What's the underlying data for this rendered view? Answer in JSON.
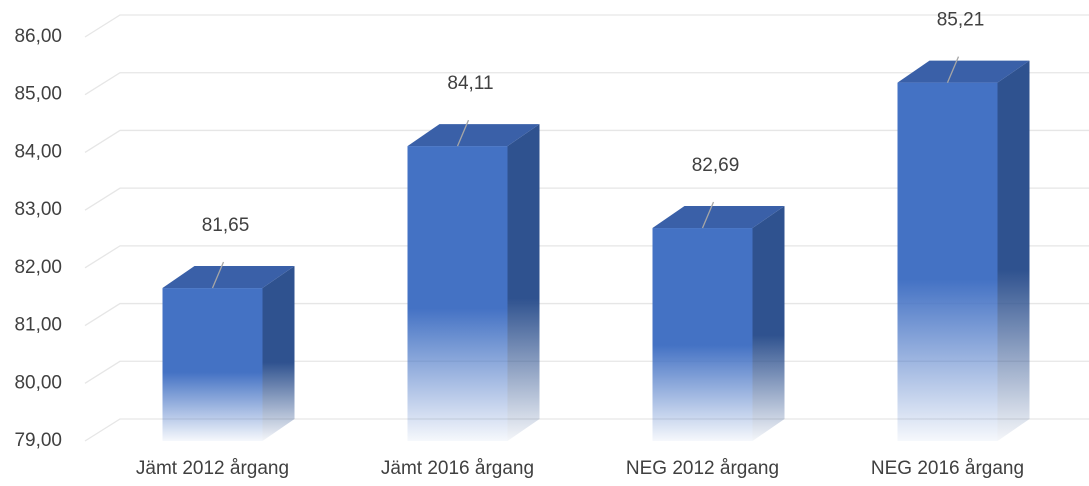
{
  "chart_data": {
    "type": "bar",
    "bar_style": "3d",
    "categories": [
      "Jämt 2012 årgang",
      "Jämt 2016 årgang",
      "NEG 2012 årgang",
      "NEG 2016 årgang"
    ],
    "values": [
      81.65,
      84.11,
      82.69,
      85.21
    ],
    "value_labels": [
      "81,65",
      "84,11",
      "82,69",
      "85,21"
    ],
    "color": "#4472c4",
    "ylim": [
      79,
      86
    ],
    "yticks": [
      {
        "value": 79,
        "label": "79,00"
      },
      {
        "value": 80,
        "label": "80,00"
      },
      {
        "value": 81,
        "label": "81,00"
      },
      {
        "value": 82,
        "label": "82,00"
      },
      {
        "value": 83,
        "label": "83,00"
      },
      {
        "value": 84,
        "label": "84,00"
      },
      {
        "value": 85,
        "label": "85,00"
      },
      {
        "value": 86,
        "label": "86,00"
      }
    ],
    "grid": true
  }
}
